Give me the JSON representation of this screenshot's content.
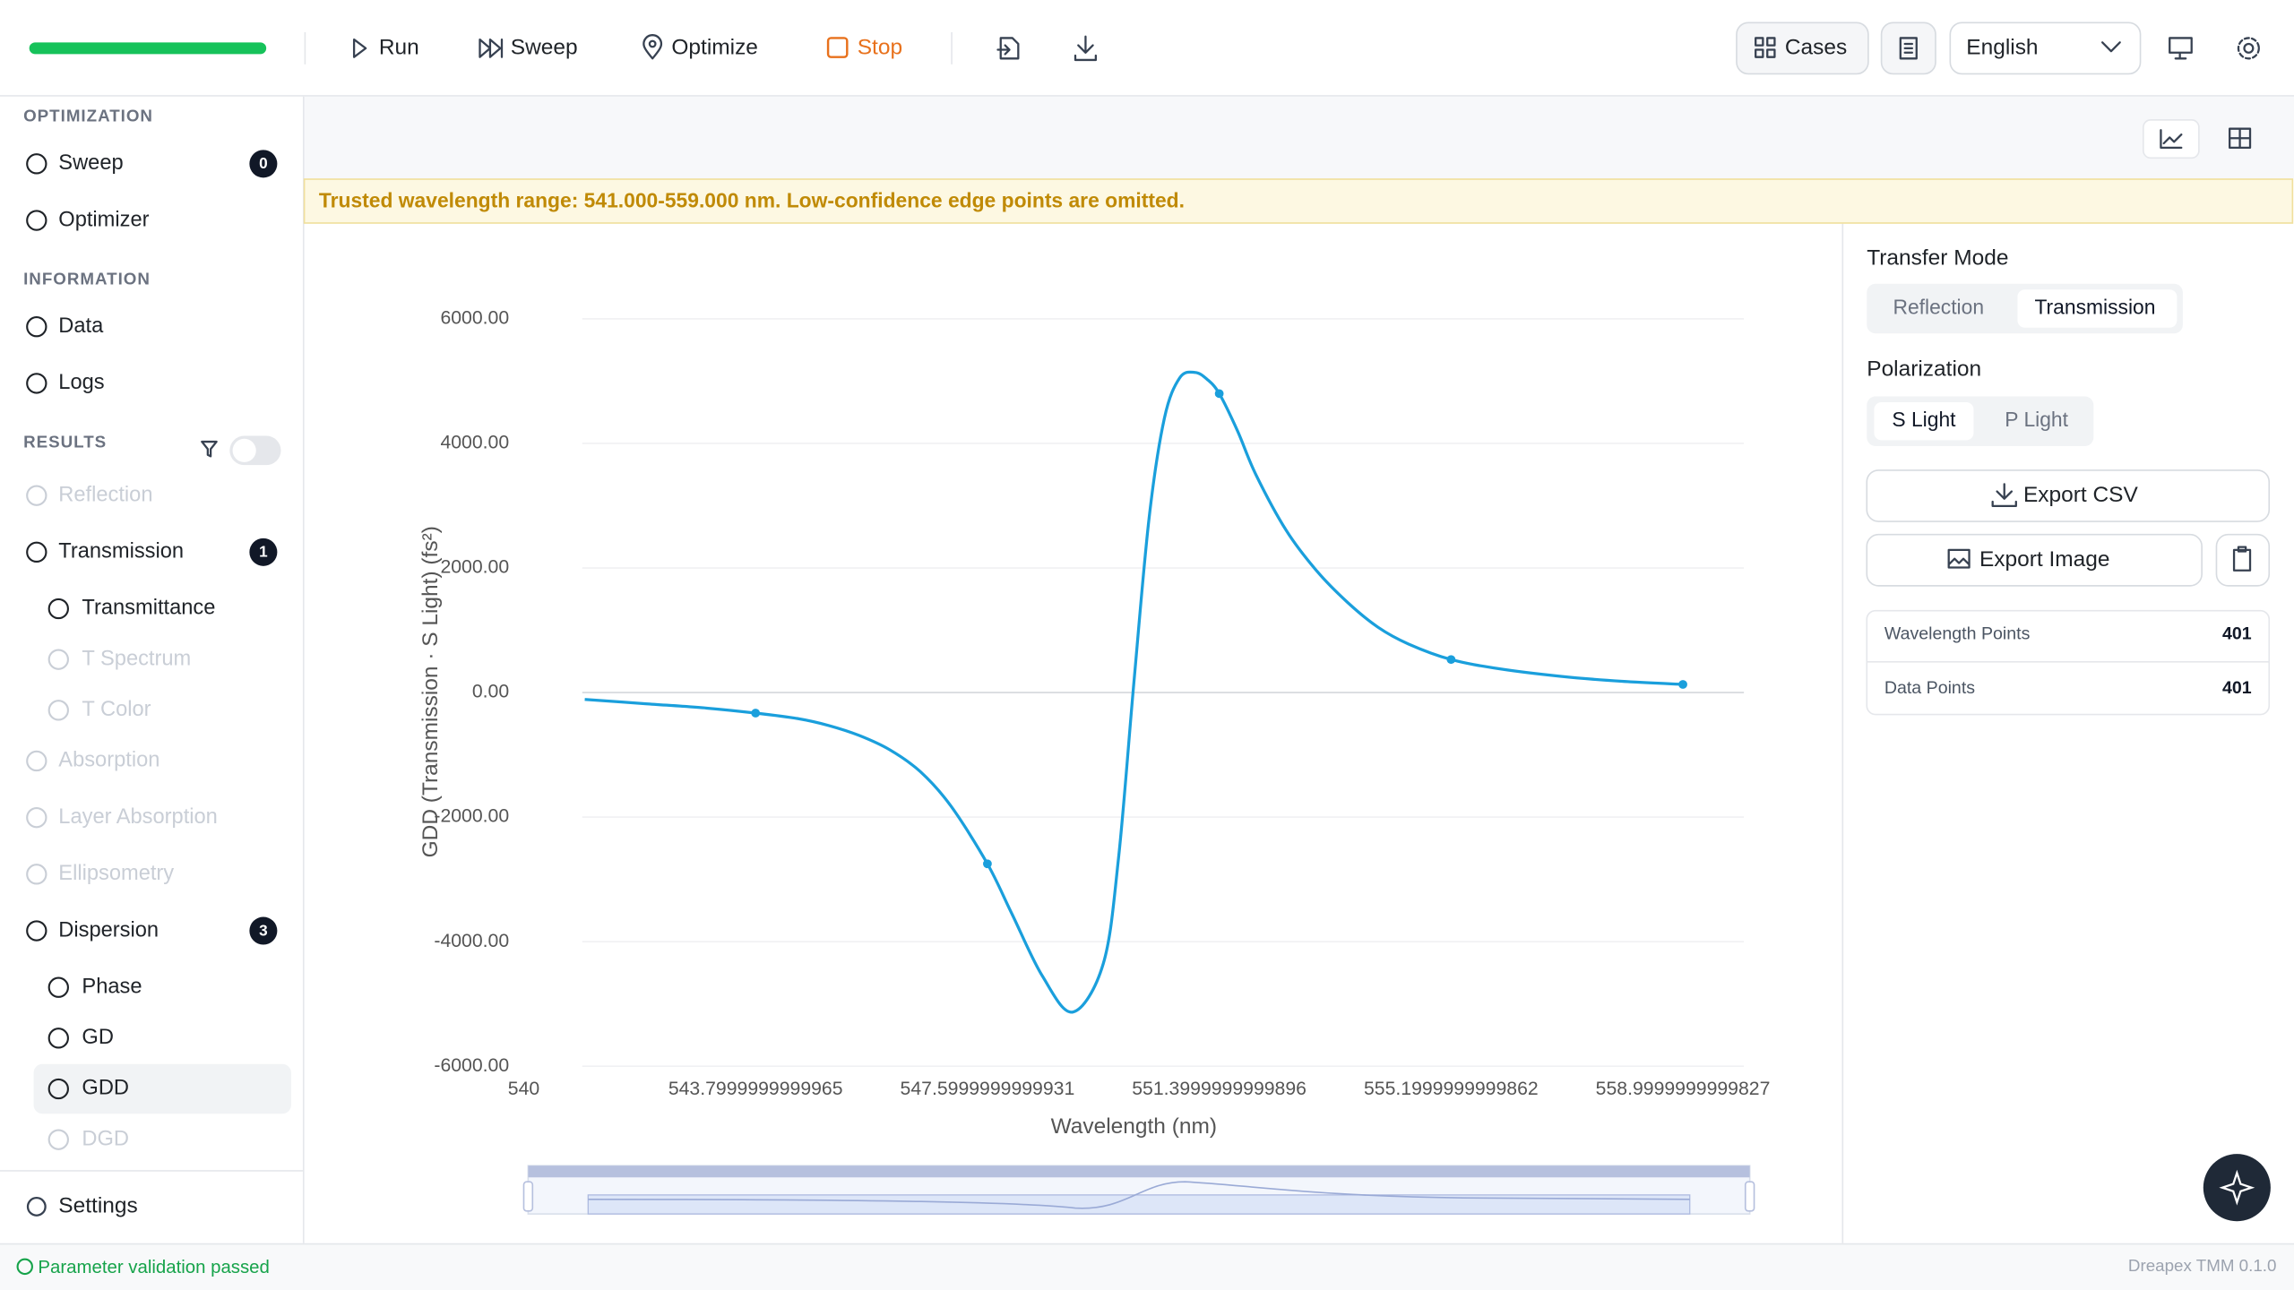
{
  "toolbar": {
    "run": "Run",
    "sweep": "Sweep",
    "optimize": "Optimize",
    "stop": "Stop",
    "cases": "Cases",
    "language": "English"
  },
  "sidebar": {
    "sections": [
      {
        "title": "OPTIMIZATION",
        "items": [
          {
            "label": "Sweep",
            "badge": "0"
          },
          {
            "label": "Optimizer"
          }
        ]
      },
      {
        "title": "INFORMATION",
        "items": [
          {
            "label": "Data"
          },
          {
            "label": "Logs"
          }
        ]
      },
      {
        "title": "RESULTS",
        "items": [
          {
            "label": "Reflection",
            "state": "disabled"
          },
          {
            "label": "Transmission",
            "badge": "1"
          },
          {
            "label": "Transmittance",
            "level": "sub"
          },
          {
            "label": "T Spectrum",
            "level": "sub",
            "state": "disabled"
          },
          {
            "label": "T Color",
            "level": "sub",
            "state": "disabled"
          },
          {
            "label": "Absorption",
            "state": "disabled"
          },
          {
            "label": "Layer Absorption",
            "state": "disabled"
          },
          {
            "label": "Ellipsometry",
            "state": "disabled"
          },
          {
            "label": "Dispersion",
            "badge": "3"
          },
          {
            "label": "Phase",
            "level": "sub"
          },
          {
            "label": "GD",
            "level": "sub"
          },
          {
            "label": "GDD",
            "level": "sub",
            "state": "active"
          },
          {
            "label": "DGD",
            "level": "sub",
            "state": "disabled"
          }
        ]
      }
    ],
    "settings": "Settings"
  },
  "banner": "Trusted wavelength range: 541.000-559.000 nm. Low-confidence edge points are omitted.",
  "chart_data": {
    "type": "line",
    "x_label": "Wavelength (nm)",
    "y_label": "GDD (Transmission · S Light) (fs²)",
    "xlim": [
      540,
      560
    ],
    "xticks": [
      540,
      543.7999999999965,
      547.5999999999931,
      551.3999999999896,
      555.1999999999862,
      558.9999999999827
    ],
    "ylim": [
      -6000,
      6000
    ],
    "yticks": [
      {
        "value": -6000,
        "label": "-6000.00"
      },
      {
        "value": -4000,
        "label": "-4000.00"
      },
      {
        "value": -2000,
        "label": "-2000.00"
      },
      {
        "value": 0,
        "label": "0.00"
      },
      {
        "value": 2000,
        "label": "2000.00"
      },
      {
        "value": 4000,
        "label": "4000.00"
      },
      {
        "value": 6000,
        "label": "6000.00"
      }
    ],
    "grid": true,
    "x": [
      541.0,
      542.0,
      543.0,
      543.7999999999965,
      544.5,
      545.0,
      545.5,
      546.0,
      546.5,
      547.0,
      547.5999999999931,
      548.0,
      548.5,
      549.0,
      549.5,
      549.75,
      550.0,
      550.25,
      550.5,
      550.75,
      551.0,
      551.2,
      551.3999999999896,
      551.7,
      552.0,
      552.5,
      553.0,
      553.5,
      554.0,
      554.5,
      555.1999999999862,
      556.0,
      557.0,
      558.0,
      558.9999999999827
    ],
    "series": [
      {
        "name": "GDD",
        "color": "#1a9fdc",
        "values": [
          -110,
          -180,
          -250,
          -330,
          -420,
          -530,
          -690,
          -920,
          -1270,
          -1820,
          -2750,
          -3550,
          -4550,
          -5130,
          -4350,
          -2650,
          150,
          2800,
          4400,
          5050,
          5140,
          5030,
          4800,
          4200,
          3500,
          2600,
          1950,
          1450,
          1050,
          780,
          530,
          380,
          260,
          180,
          130
        ]
      }
    ]
  },
  "panel": {
    "transfer_mode": {
      "title": "Transfer Mode",
      "options": [
        "Reflection",
        "Transmission"
      ]
    },
    "polarization": {
      "title": "Polarization",
      "options": [
        "S Light",
        "P Light"
      ]
    },
    "export_csv": "Export CSV",
    "export_image": "Export Image",
    "stats": [
      {
        "label": "Wavelength Points",
        "value": "401"
      },
      {
        "label": "Data Points",
        "value": "401"
      }
    ]
  },
  "status": {
    "message": "Parameter validation passed",
    "version": "Dreapex TMM 0.1.0"
  }
}
